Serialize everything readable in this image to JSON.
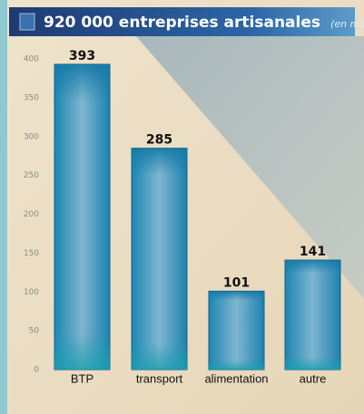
{
  "chart_data": {
    "type": "bar",
    "title": "920 000 entreprises artisanales",
    "subtitle": "(en milliers)",
    "categories": [
      "BTP",
      "transport",
      "alimentation",
      "autre"
    ],
    "values": [
      393,
      285,
      101,
      141
    ],
    "ylim": [
      0,
      400
    ],
    "yticks": [
      0,
      50,
      100,
      150,
      200,
      250,
      300,
      350,
      400
    ]
  }
}
